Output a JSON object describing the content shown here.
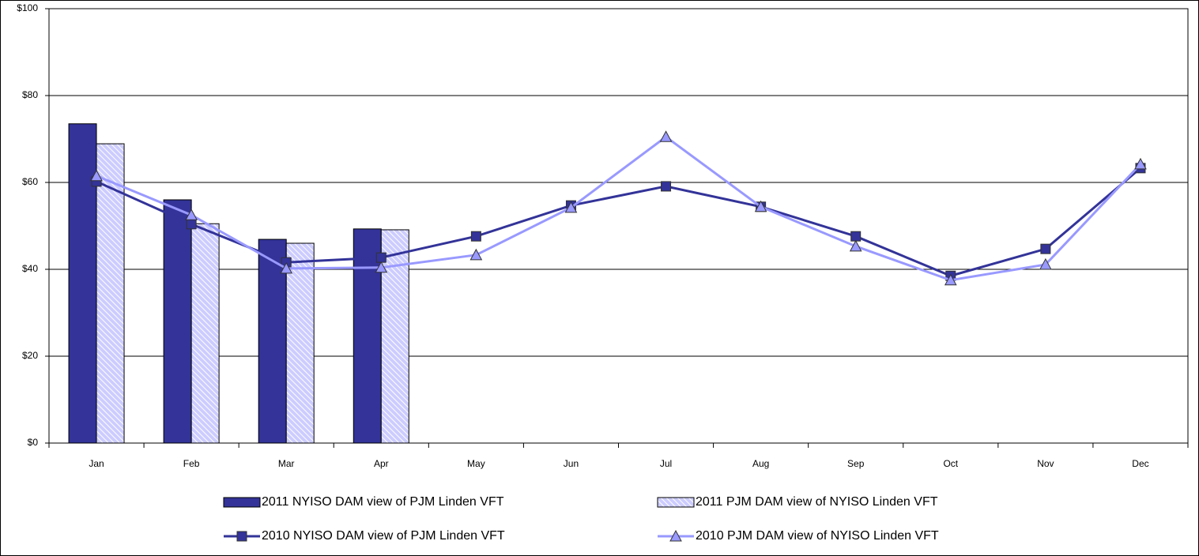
{
  "chart_data": {
    "type": "bar",
    "categories": [
      "Jan",
      "Feb",
      "Mar",
      "Apr",
      "May",
      "Jun",
      "Jul",
      "Aug",
      "Sep",
      "Oct",
      "Nov",
      "Dec"
    ],
    "series": [
      {
        "name": "2011 NYISO DAM view of PJM Linden VFT",
        "type": "bar",
        "color": "#333399",
        "values": [
          73.5,
          56.0,
          46.9,
          49.3,
          null,
          null,
          null,
          null,
          null,
          null,
          null,
          null
        ]
      },
      {
        "name": "2011 PJM DAM view of NYISO Linden VFT",
        "type": "bar",
        "color": "#ccccff",
        "hatch": true,
        "values": [
          68.9,
          50.5,
          46.0,
          49.1,
          null,
          null,
          null,
          null,
          null,
          null,
          null,
          null
        ]
      },
      {
        "name": "2010 NYISO DAM view of PJM Linden VFT",
        "type": "line",
        "marker": "square",
        "color": "#333399",
        "values": [
          60.2,
          50.4,
          41.6,
          42.7,
          47.6,
          54.7,
          59.1,
          54.4,
          47.6,
          38.5,
          44.7,
          63.3
        ]
      },
      {
        "name": "2010 PJM DAM view of NYISO Linden VFT",
        "type": "line",
        "marker": "triangle",
        "color": "#9999ff",
        "values": [
          61.5,
          52.5,
          40.2,
          40.4,
          43.3,
          54.2,
          70.5,
          54.4,
          45.3,
          37.5,
          41.1,
          64.2
        ]
      }
    ],
    "ylim": [
      0,
      100
    ],
    "yticks": [
      {
        "value": 0,
        "label": "$0"
      },
      {
        "value": 20,
        "label": "$20"
      },
      {
        "value": 40,
        "label": "$40"
      },
      {
        "value": 60,
        "label": "$60"
      },
      {
        "value": 80,
        "label": "$80"
      },
      {
        "value": 100,
        "label": "$100"
      }
    ],
    "grid": true,
    "legend": "bottom"
  }
}
